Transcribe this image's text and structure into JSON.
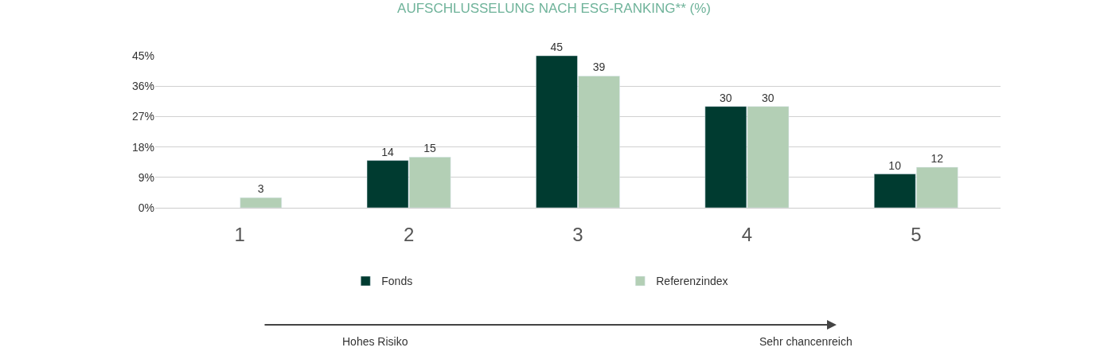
{
  "chart_data": {
    "type": "bar",
    "title": "AUFSCHLUSSELUNG NACH ESG-RANKING** (%)",
    "categories": [
      "1",
      "2",
      "3",
      "4",
      "5"
    ],
    "series": [
      {
        "name": "Fonds",
        "color": "#003b30",
        "values": [
          null,
          14,
          45,
          30,
          10
        ]
      },
      {
        "name": "Referenzindex",
        "color": "#b3cfb5",
        "values": [
          3,
          15,
          39,
          30,
          12
        ]
      }
    ],
    "ylim": [
      0,
      45
    ],
    "yticks": [
      {
        "value": 0,
        "label": "0%"
      },
      {
        "value": 9,
        "label": "9%"
      },
      {
        "value": 18,
        "label": "18%"
      },
      {
        "value": 27,
        "label": "27%"
      },
      {
        "value": 36,
        "label": "36%"
      },
      {
        "value": 45,
        "label": "45%"
      }
    ],
    "grid": "y",
    "legend": "bottom",
    "data_labels": true,
    "annotations": [
      "Hohes Risiko",
      "Sehr chancenreich"
    ]
  }
}
